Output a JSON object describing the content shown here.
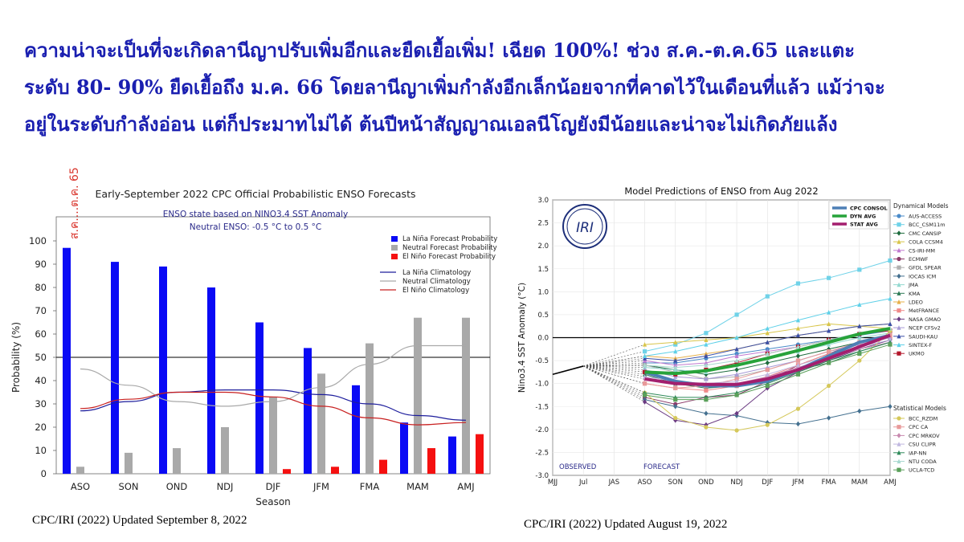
{
  "headline": [
    "ความน่าจะเป็นที่จะเกิดลานีญาปรับเพิ่มอีกและยืดเยื้อเพิ่ม! เฉียด 100%! ช่วง ส.ค.-ต.ค.65 และแตะ",
    "ระดับ 80- 90% ยืดเยื้อถึง ม.ค. 66 โดยลานีญาเพิ่มกำลังอีกเล็กน้อยจากที่คาดไว้ในเดือนที่แล้ว แม้ว่าจะ",
    "อยู่ในระดับกำลังอ่อน แต่ก็ประมาทไม่ได้ ต้นปีหน้าสัญญาณเอลนีโญยังมีน้อยและน่าจะไม่เกิดภัยแล้ง"
  ],
  "credits": {
    "left": "CPC/IRI (2022) Updated  September 8, 2022",
    "right": "CPC/IRI (2022) Updated August 19, 2022"
  },
  "colors": {
    "headline": "#1a1fb0",
    "la_nina": "#0a0af5",
    "neutral": "#a9a9a9",
    "el_nino": "#f51010",
    "annotation": "#d9342b"
  },
  "chart_data": [
    {
      "type": "bar",
      "title": "Early-September 2022 CPC Official Probabilistic ENSO Forecasts",
      "subtitle": "ENSO state based on NINO3.4 SST Anomaly",
      "subtitle2": "Neutral ENSO: -0.5 °C to 0.5 °C",
      "annotation": "ส.ค....ต.ค. 65",
      "xlabel": "Season",
      "ylabel": "Probability (%)",
      "ylim": [
        0,
        100
      ],
      "yticks": [
        0,
        10,
        20,
        30,
        40,
        50,
        60,
        70,
        80,
        90,
        100
      ],
      "reference_line": 50,
      "legend_position": "top-right",
      "categories": [
        "ASO",
        "SON",
        "OND",
        "NDJ",
        "DJF",
        "JFM",
        "FMA",
        "MAM",
        "AMJ"
      ],
      "series": [
        {
          "name": "La Niña Forecast Probability",
          "color": "#0a0af5",
          "values": [
            97,
            91,
            89,
            80,
            65,
            54,
            38,
            22,
            16
          ]
        },
        {
          "name": "Neutral Forecast Probability",
          "color": "#a9a9a9",
          "values": [
            3,
            9,
            11,
            20,
            33,
            43,
            56,
            67,
            67
          ]
        },
        {
          "name": "El Niño Forecast Probability",
          "color": "#f51010",
          "values": [
            0,
            0,
            0,
            0,
            2,
            3,
            6,
            11,
            17
          ]
        }
      ],
      "climatology": [
        {
          "name": "La Niña Climatology",
          "color": "#1d1d9c",
          "values": [
            27,
            31,
            35,
            36,
            36,
            34,
            30,
            25,
            23
          ]
        },
        {
          "name": "Neutral Climatology",
          "color": "#a9a9a9",
          "values": [
            45,
            38,
            31,
            29,
            31,
            37,
            47,
            55,
            55
          ]
        },
        {
          "name": "El Niño Climatology",
          "color": "#c82020",
          "values": [
            28,
            32,
            35,
            35,
            33,
            29,
            24,
            21,
            22
          ]
        }
      ]
    },
    {
      "type": "line",
      "title": "Model Predictions of ENSO from Aug 2022",
      "ylabel": "Nino3.4 SST Anomaly (°C)",
      "ylim": [
        -3.0,
        3.0
      ],
      "yticks": [
        -3.0,
        -2.5,
        -2.0,
        -1.5,
        -1.0,
        -0.5,
        0.0,
        0.5,
        1.0,
        1.5,
        2.0,
        2.5,
        3.0
      ],
      "x": [
        "MJJ",
        "Jul",
        "JAS",
        "ASO",
        "SON",
        "OND",
        "NDJ",
        "DJF",
        "JFM",
        "FMA",
        "MAM",
        "AMJ"
      ],
      "observed_label": "OBSERVED",
      "forecast_label": "FORECAST",
      "logo_text": "IRI",
      "observed": [
        -0.8,
        -0.62
      ],
      "averages": [
        {
          "name": "CPC CONSOL",
          "color": "#4d7fb5",
          "values": [
            -0.75,
            -0.95,
            -1.05,
            -1.05,
            -0.95,
            -0.7,
            -0.4,
            -0.1,
            0.05
          ]
        },
        {
          "name": "DYN AVG",
          "color": "#27a33a",
          "values": [
            -0.75,
            -0.78,
            -0.72,
            -0.6,
            -0.45,
            -0.28,
            -0.1,
            0.08,
            0.2
          ]
        },
        {
          "name": "STAT AVG",
          "color": "#a31f6e",
          "values": [
            -0.9,
            -1.0,
            -1.02,
            -1.02,
            -0.9,
            -0.7,
            -0.45,
            -0.2,
            0.05
          ]
        }
      ],
      "dynamical_legend_title": "Dynamical Models",
      "statistical_legend_title": "Statistical Models",
      "dynamical_models": [
        {
          "name": "AUS-ACCESS",
          "color": "#4a8bc9",
          "marker": "circle",
          "values": [
            -0.55,
            -0.55,
            -0.45,
            -0.35,
            -0.25,
            -0.15,
            -0.05,
            0.05,
            0.15
          ]
        },
        {
          "name": "BCC_CSM11m",
          "color": "#6fd2e8",
          "marker": "square",
          "values": [
            -0.3,
            -0.15,
            0.1,
            0.5,
            0.9,
            1.18,
            1.3,
            1.48,
            1.68
          ]
        },
        {
          "name": "CMC CANSIP",
          "color": "#1d6b3d",
          "marker": "diamond",
          "values": [
            -0.6,
            -0.7,
            -0.8,
            -0.7,
            -0.55,
            -0.4,
            -0.25,
            -0.1,
            0.0
          ]
        },
        {
          "name": "COLA CCSM4",
          "color": "#d8c54a",
          "marker": "triangle",
          "values": [
            -0.15,
            -0.1,
            -0.05,
            0.0,
            0.1,
            0.2,
            0.3,
            0.25,
            0.2
          ]
        },
        {
          "name": "CS-IRI-MM",
          "color": "#c07ad0",
          "marker": "triangle",
          "values": [
            -0.5,
            -0.6,
            -0.55,
            -0.4,
            -0.3,
            -0.2,
            -0.05,
            0.1,
            0.2
          ]
        },
        {
          "name": "ECMWF",
          "color": "#8c3b6a",
          "marker": "circle",
          "values": [
            -1.3,
            -1.45,
            -1.3,
            -1.25,
            -0.95,
            -0.6,
            -0.35,
            -0.1,
            0.05
          ]
        },
        {
          "name": "GFDL SPEAR",
          "color": "#b0b0b0",
          "marker": "square",
          "values": [
            -0.6,
            -0.75,
            -0.9,
            -0.85,
            -0.7,
            -0.5,
            -0.3,
            -0.15,
            0.0
          ]
        },
        {
          "name": "IOCAS ICM",
          "color": "#44708f",
          "marker": "diamond",
          "values": [
            -1.35,
            -1.5,
            -1.65,
            -1.7,
            -1.85,
            -1.88,
            -1.75,
            -1.6,
            -1.5
          ]
        },
        {
          "name": "JMA",
          "color": "#93d9d0",
          "marker": "triangle",
          "values": [
            -0.65,
            -0.7,
            -0.75,
            -0.6,
            -0.45,
            -0.3,
            -0.15,
            0.0,
            0.1
          ]
        },
        {
          "name": "KMA",
          "color": "#2d7a55",
          "marker": "triangle",
          "values": [
            -0.8,
            -1.0,
            -1.1,
            -1.05,
            -0.9,
            -0.7,
            -0.55,
            -0.3,
            -0.1
          ]
        },
        {
          "name": "LDEO",
          "color": "#e7b04a",
          "marker": "triangle",
          "values": [
            -0.4,
            -0.45,
            -0.35,
            -0.25,
            -0.1,
            0.05,
            0.15,
            0.25,
            0.3
          ]
        },
        {
          "name": "MetFRANCE",
          "color": "#f08a8a",
          "marker": "square",
          "values": [
            -1.0,
            -1.1,
            -1.15,
            -1.05,
            -0.85,
            -0.6,
            -0.35,
            -0.15,
            0.0
          ]
        },
        {
          "name": "NASA GMAO",
          "color": "#6b3a82",
          "marker": "diamond",
          "values": [
            -1.4,
            -1.8,
            -1.9,
            -1.65,
            -1.1,
            -0.75,
            -0.5,
            -0.25,
            -0.05
          ]
        },
        {
          "name": "NCEP CFSv2",
          "color": "#a69ad6",
          "marker": "triangle",
          "values": [
            -0.7,
            -0.85,
            -0.9,
            -0.8,
            -0.65,
            -0.5,
            -0.3,
            -0.15,
            0.0
          ]
        },
        {
          "name": "SAUDI-KAU",
          "color": "#3a4fa8",
          "marker": "triangle",
          "values": [
            -0.45,
            -0.5,
            -0.4,
            -0.25,
            -0.1,
            0.05,
            0.15,
            0.25,
            0.3
          ]
        },
        {
          "name": "SINTEX-F",
          "color": "#5ed0e8",
          "marker": "triangle",
          "values": [
            -0.4,
            -0.3,
            -0.15,
            0.0,
            0.2,
            0.38,
            0.55,
            0.72,
            0.85
          ]
        },
        {
          "name": "UKMO",
          "color": "#b3172b",
          "marker": "square",
          "values": [
            -0.75,
            -0.8,
            -0.7,
            -0.55,
            -0.35,
            -0.2,
            -0.05,
            0.08,
            0.15
          ]
        }
      ],
      "statistical_models": [
        {
          "name": "BCC_RZDM",
          "color": "#d5c85a",
          "marker": "circle",
          "values": [
            -1.2,
            -1.75,
            -1.95,
            -2.02,
            -1.9,
            -1.55,
            -1.05,
            -0.5,
            0.15
          ]
        },
        {
          "name": "CPC CA",
          "color": "#e89a9a",
          "marker": "square",
          "values": [
            -1.0,
            -1.1,
            -1.05,
            -0.9,
            -0.7,
            -0.5,
            -0.3,
            -0.1,
            0.05
          ]
        },
        {
          "name": "CPC MRKOV",
          "color": "#c88ab0",
          "marker": "diamond",
          "values": [
            -0.9,
            -1.0,
            -1.05,
            -1.0,
            -0.85,
            -0.65,
            -0.45,
            -0.25,
            -0.1
          ]
        },
        {
          "name": "CSU CLIPR",
          "color": "#c0b8e0",
          "marker": "triangle",
          "values": [
            -0.85,
            -0.95,
            -1.0,
            -0.95,
            -0.8,
            -0.6,
            -0.4,
            -0.2,
            -0.05
          ]
        },
        {
          "name": "IAP-NN",
          "color": "#2f8a5a",
          "marker": "triangle",
          "values": [
            -1.2,
            -1.3,
            -1.3,
            -1.2,
            -1.0,
            -0.75,
            -0.5,
            -0.3,
            -0.1
          ]
        },
        {
          "name": "NTU CODA",
          "color": "#a8d8d0",
          "marker": "triangle",
          "values": [
            -0.6,
            -0.65,
            -0.6,
            -0.5,
            -0.35,
            -0.2,
            -0.05,
            0.1,
            0.2
          ]
        },
        {
          "name": "UCLA-TCD",
          "color": "#5aa05a",
          "marker": "square",
          "values": [
            -1.25,
            -1.35,
            -1.35,
            -1.25,
            -1.05,
            -0.8,
            -0.55,
            -0.35,
            -0.15
          ]
        }
      ]
    }
  ]
}
